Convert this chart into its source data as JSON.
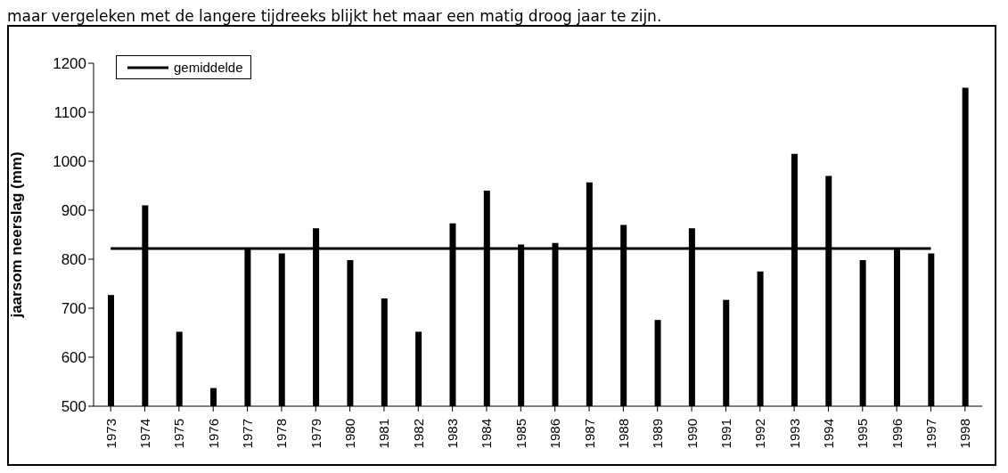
{
  "chart_data": {
    "type": "bar",
    "ylabel": "jaarsom neerslag (mm)",
    "annotations": [
      "maar vergeleken met de langere tijdreeks blijkt het maar een matig droog jaar te zijn."
    ],
    "categories": [
      "1973",
      "1974",
      "1975",
      "1976",
      "1977",
      "1978",
      "1979",
      "1980",
      "1981",
      "1982",
      "1983",
      "1984",
      "1985",
      "1986",
      "1987",
      "1988",
      "1989",
      "1990",
      "1991",
      "1992",
      "1993",
      "1994",
      "1995",
      "1996",
      "1997",
      "1998"
    ],
    "series": [
      {
        "color": "#000000",
        "values": [
          727,
          910,
          652,
          537,
          822,
          812,
          863,
          798,
          720,
          652,
          873,
          940,
          830,
          833,
          957,
          870,
          676,
          863,
          717,
          775,
          1015,
          970,
          798,
          822,
          812,
          1150
        ]
      },
      {
        "type": "line",
        "name": "gemiddelde",
        "color": "#000000",
        "values": [
          822,
          822,
          822,
          822,
          822,
          822,
          822,
          822,
          822,
          822,
          822,
          822,
          822,
          822,
          822,
          822,
          822,
          822,
          822,
          822,
          822,
          822,
          822,
          822,
          822,
          null
        ]
      }
    ],
    "ylim": [
      500,
      1200
    ],
    "yticks": [
      500,
      600,
      700,
      800,
      900,
      1000,
      1100,
      1200
    ],
    "grid": false,
    "legend": "top left",
    "marker": "none",
    "line_style": "solid"
  }
}
